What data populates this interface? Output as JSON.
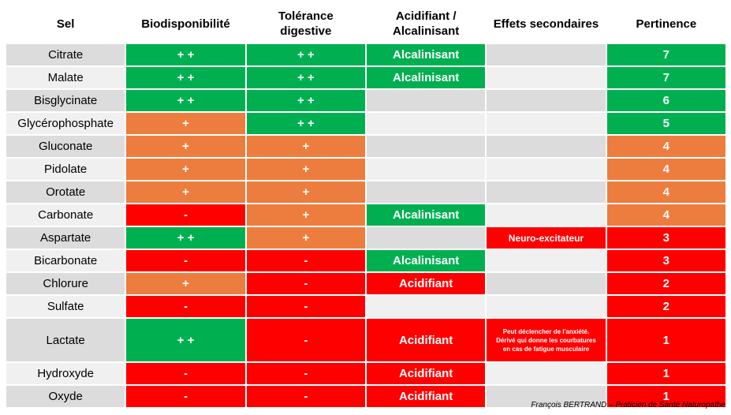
{
  "table": {
    "headers": {
      "sel": "Sel",
      "bio": "Biodisponibilité",
      "tol_1": "Tolérance",
      "tol_2": "digestive",
      "acid_1": "Acidifiant /",
      "acid_2": "Alcalinisant",
      "effets": "Effets secondaires",
      "pert": "Pertinence"
    },
    "rows": [
      {
        "sel": "Citrate",
        "bio": "+ +",
        "tol": "+ +",
        "acid": "Alcalinisant",
        "effets": "",
        "pert": "7"
      },
      {
        "sel": "Malate",
        "bio": "+ +",
        "tol": "+ +",
        "acid": "Alcalinisant",
        "effets": "",
        "pert": "7"
      },
      {
        "sel": "Bisglycinate",
        "bio": "+ +",
        "tol": "+ +",
        "acid": "",
        "effets": "",
        "pert": "6"
      },
      {
        "sel": "Glycérophosphate",
        "bio": "+",
        "tol": "+ +",
        "acid": "",
        "effets": "",
        "pert": "5"
      },
      {
        "sel": "Gluconate",
        "bio": "+",
        "tol": "+",
        "acid": "",
        "effets": "",
        "pert": "4"
      },
      {
        "sel": "Pidolate",
        "bio": "+",
        "tol": "+",
        "acid": "",
        "effets": "",
        "pert": "4"
      },
      {
        "sel": "Orotate",
        "bio": "+",
        "tol": "+",
        "acid": "",
        "effets": "",
        "pert": "4"
      },
      {
        "sel": "Carbonate",
        "bio": "-",
        "tol": "+",
        "acid": "Alcalinisant",
        "effets": "",
        "pert": "4"
      },
      {
        "sel": "Aspartate",
        "bio": "+ +",
        "tol": "+",
        "acid": "",
        "effets": "Neuro-excitateur",
        "pert": "3"
      },
      {
        "sel": "Bicarbonate",
        "bio": "-",
        "tol": "-",
        "acid": "Alcalinisant",
        "effets": "",
        "pert": "3"
      },
      {
        "sel": "Chlorure",
        "bio": "+",
        "tol": "-",
        "acid": "Acidifiant",
        "effets": "",
        "pert": "2"
      },
      {
        "sel": "Sulfate",
        "bio": "-",
        "tol": "-",
        "acid": "",
        "effets": "",
        "pert": "2"
      },
      {
        "sel": "Lactate",
        "bio": "+ +",
        "tol": "-",
        "acid": "Acidifiant",
        "effets_1": "Peut déclencher de l'anxiété.",
        "effets_2": "Dérivé qui donne les courbatures",
        "effets_3": "en cas de fatigue musculaire",
        "pert": "1"
      },
      {
        "sel": "Hydroxyde",
        "bio": "-",
        "tol": "-",
        "acid": "Acidifiant",
        "effets": "",
        "pert": "1"
      },
      {
        "sel": "Oxyde",
        "bio": "-",
        "tol": "-",
        "acid": "Acidifiant",
        "effets": "",
        "pert": "1"
      }
    ]
  },
  "colors": {
    "green": "#00b050",
    "orange": "#ed7d3f",
    "red": "#ff0000",
    "gray": "#dcdcdc",
    "light": "#f0f0f0"
  },
  "footer": {
    "credit": "François BERTRAND – Praticien de Santé Naturopathe"
  }
}
